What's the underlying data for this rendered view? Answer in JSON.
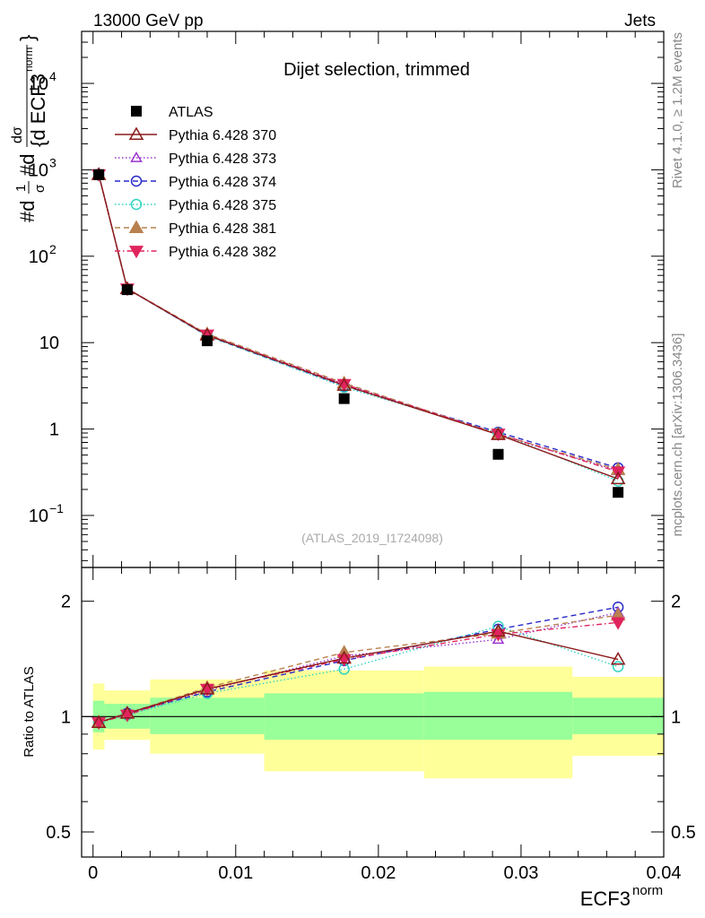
{
  "header": {
    "left": "13000 GeV pp",
    "right": "Jets",
    "side_top": "Rivet 4.1.0, ≥ 1.2M events",
    "side_bottom": "mcplots.cern.ch [arXiv:1306.3436]"
  },
  "chart_data": [
    {
      "type": "scatter",
      "title": "Dijet selection, trimmed",
      "watermark": "(ATLAS_2019_I1724098)",
      "ylabel_parts": [
        "#d",
        "1",
        "σ",
        "#d",
        "dσ",
        "{d ECF3",
        "norm",
        "}"
      ],
      "yscale": "log",
      "ylim": [
        0.025,
        40000
      ],
      "xlim": [
        -0.0008,
        0.04
      ],
      "ytick_labels": [
        {
          "value": 0.1,
          "base": "10",
          "exp": "−1"
        },
        {
          "value": 1,
          "base": "1",
          "exp": ""
        },
        {
          "value": 10,
          "base": "10",
          "exp": ""
        },
        {
          "value": 100,
          "base": "10",
          "exp": "2"
        },
        {
          "value": 1000,
          "base": "10",
          "exp": "3"
        },
        {
          "value": 10000,
          "base": "10",
          "exp": "4"
        }
      ],
      "x": [
        0.0004,
        0.0024,
        0.008,
        0.0176,
        0.0284,
        0.0368
      ],
      "data": {
        "name": "ATLAS",
        "values": [
          880,
          41,
          10.5,
          2.25,
          0.51,
          0.185
        ]
      },
      "series": [
        {
          "name": "Pythia 6.428 370",
          "color": "#8b1a1a",
          "marker": "triangle-open",
          "dash": "",
          "values": [
            880,
            42,
            12.2,
            3.2,
            0.86,
            0.265
          ]
        },
        {
          "name": "Pythia 6.428 373",
          "color": "#9933cc",
          "marker": "triangle-open-small",
          "dash": "1.5,2.5",
          "values": [
            880,
            42,
            12.3,
            3.3,
            0.86,
            0.33
          ]
        },
        {
          "name": "Pythia 6.428 374",
          "color": "#2a2ac8",
          "marker": "circle-open",
          "dash": "6,4",
          "values": [
            885,
            42,
            12.0,
            3.15,
            0.92,
            0.355
          ]
        },
        {
          "name": "Pythia 6.428 375",
          "color": "#2fd3c1",
          "marker": "circle-open",
          "dash": "1.5,2.5",
          "values": [
            870,
            42,
            12.0,
            3.05,
            0.9,
            0.25
          ]
        },
        {
          "name": "Pythia 6.428 381",
          "color": "#b8814f",
          "marker": "triangle-filled",
          "dash": "6,4",
          "values": [
            880,
            42,
            12.6,
            3.4,
            0.87,
            0.34
          ]
        },
        {
          "name": "Pythia 6.428 382",
          "color": "#e0245e",
          "marker": "triangle-down-filled",
          "dash": "6,3,1.5,3",
          "values": [
            880,
            42,
            12.3,
            3.3,
            0.88,
            0.32
          ]
        }
      ]
    },
    {
      "type": "scatter",
      "ylabel": "Ratio to ATLAS",
      "xlabel": "ECF3",
      "xlabel_sup": "norm",
      "yscale": "log",
      "ylim": [
        0.43,
        2.45
      ],
      "xlim": [
        -0.0008,
        0.04
      ],
      "ytick_labels": [
        {
          "value": 0.5,
          "label": "0.5"
        },
        {
          "value": 1,
          "label": "1"
        },
        {
          "value": 2,
          "label": "2"
        }
      ],
      "xtick_labels": [
        {
          "value": 0,
          "label": "0"
        },
        {
          "value": 0.01,
          "label": "0.01"
        },
        {
          "value": 0.02,
          "label": "0.02"
        },
        {
          "value": 0.03,
          "label": "0.03"
        },
        {
          "value": 0.04,
          "label": "0.04"
        }
      ],
      "bins": [
        {
          "lo": 0.0,
          "hi": 0.0008,
          "band_inner": [
            0.91,
            1.1
          ],
          "band_outer": [
            0.82,
            1.22
          ]
        },
        {
          "lo": 0.0008,
          "hi": 0.004,
          "band_inner": [
            0.93,
            1.08
          ],
          "band_outer": [
            0.87,
            1.17
          ]
        },
        {
          "lo": 0.004,
          "hi": 0.012,
          "band_inner": [
            0.9,
            1.12
          ],
          "band_outer": [
            0.8,
            1.25
          ]
        },
        {
          "lo": 0.012,
          "hi": 0.0232,
          "band_inner": [
            0.87,
            1.15
          ],
          "band_outer": [
            0.72,
            1.32
          ]
        },
        {
          "lo": 0.0232,
          "hi": 0.0336,
          "band_inner": [
            0.87,
            1.16
          ],
          "band_outer": [
            0.69,
            1.35
          ]
        },
        {
          "lo": 0.0336,
          "hi": 0.04,
          "band_inner": [
            0.9,
            1.12
          ],
          "band_outer": [
            0.79,
            1.27
          ]
        }
      ],
      "x": [
        0.0004,
        0.0024,
        0.008,
        0.0176,
        0.0284,
        0.0368
      ],
      "series": [
        {
          "name": "Pythia 6.428 370",
          "values": [
            0.965,
            1.02,
            1.18,
            1.42,
            1.67,
            1.41
          ]
        },
        {
          "name": "Pythia 6.428 373",
          "values": [
            0.965,
            1.02,
            1.17,
            1.44,
            1.59,
            1.87
          ]
        },
        {
          "name": "Pythia 6.428 374",
          "values": [
            0.965,
            1.02,
            1.16,
            1.4,
            1.69,
            1.93
          ]
        },
        {
          "name": "Pythia 6.428 375",
          "values": [
            0.965,
            1.01,
            1.15,
            1.33,
            1.72,
            1.35
          ]
        },
        {
          "name": "Pythia 6.428 381",
          "values": [
            0.965,
            1.02,
            1.19,
            1.47,
            1.65,
            1.84
          ]
        },
        {
          "name": "Pythia 6.428 382",
          "values": [
            0.965,
            1.01,
            1.18,
            1.41,
            1.64,
            1.76
          ]
        }
      ]
    }
  ]
}
